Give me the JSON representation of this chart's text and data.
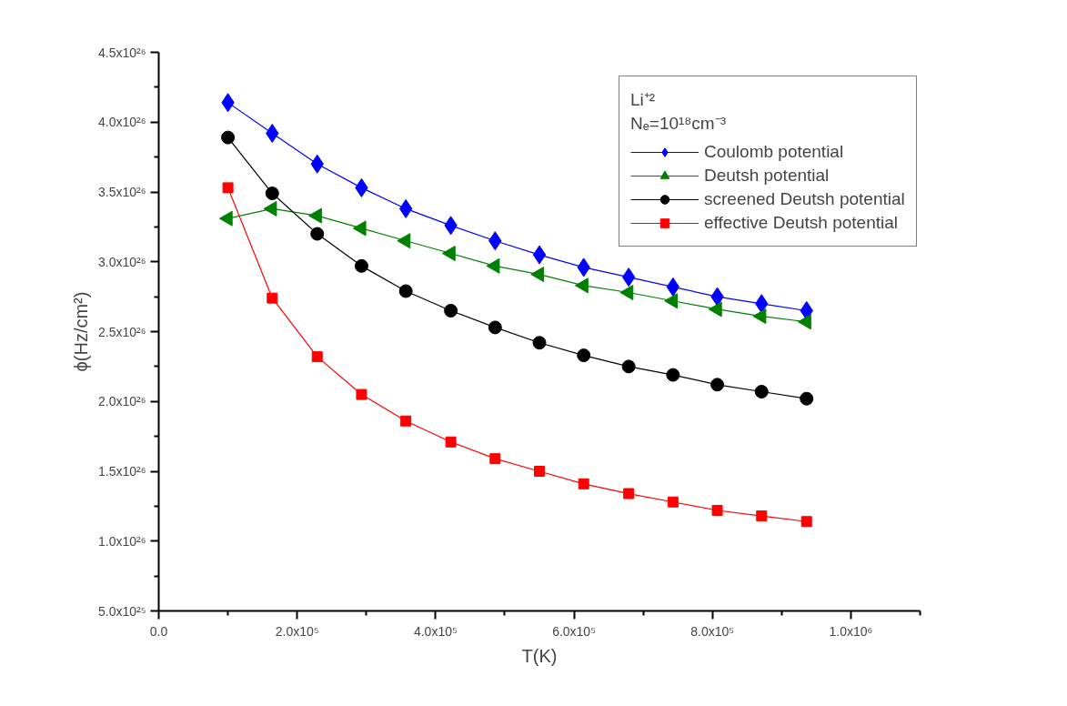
{
  "chart_data": {
    "type": "line",
    "xlabel": "T(K)",
    "ylabel": "ϕ(Hz/cm²)",
    "legend_title": "Li⁺²\nNₑ=10¹⁸cm⁻³",
    "x": [
      100000,
      164000,
      229000,
      293000,
      357000,
      422000,
      486000,
      550000,
      614000,
      679000,
      743000,
      807000,
      871000,
      936000
    ],
    "series": [
      {
        "name": "Coulomb potential",
        "color": "#0000ff",
        "marker": "diamond",
        "values": [
          4.14e+26,
          3.92e+26,
          3.7e+26,
          3.53e+26,
          3.38e+26,
          3.26e+26,
          3.15e+26,
          3.05e+26,
          2.96e+26,
          2.89e+26,
          2.82e+26,
          2.75e+26,
          2.7e+26,
          2.65e+26
        ]
      },
      {
        "name": "Deutsh potential",
        "color": "#008000",
        "marker": "triangle",
        "values": [
          3.31e+26,
          3.38e+26,
          3.33e+26,
          3.24e+26,
          3.15e+26,
          3.06e+26,
          2.97e+26,
          2.91e+26,
          2.83e+26,
          2.78e+26,
          2.72e+26,
          2.66e+26,
          2.61e+26,
          2.57e+26
        ]
      },
      {
        "name": "screened Deutsh potential",
        "color": "#000000",
        "marker": "circle",
        "values": [
          3.89e+26,
          3.49e+26,
          3.2e+26,
          2.97e+26,
          2.79e+26,
          2.65e+26,
          2.53e+26,
          2.42e+26,
          2.33e+26,
          2.25e+26,
          2.19e+26,
          2.12e+26,
          2.07e+26,
          2.02e+26
        ]
      },
      {
        "name": "effective Deutsh potential",
        "color": "#ff0000",
        "marker": "square",
        "values": [
          3.53e+26,
          2.74e+26,
          2.32e+26,
          2.05e+26,
          1.86e+26,
          1.71e+26,
          1.59e+26,
          1.5e+26,
          1.41e+26,
          1.34e+26,
          1.28e+26,
          1.22e+26,
          1.18e+26,
          1.14e+26
        ]
      }
    ],
    "xlim": [
      0,
      1100000
    ],
    "xticks": [
      {
        "value": 0,
        "label": "0.0"
      },
      {
        "value": 100000,
        "label": null
      },
      {
        "value": 200000,
        "label": "2.0x10⁵"
      },
      {
        "value": 300000,
        "label": null
      },
      {
        "value": 400000,
        "label": "4.0x10⁵"
      },
      {
        "value": 500000,
        "label": null
      },
      {
        "value": 600000,
        "label": "6.0x10⁵"
      },
      {
        "value": 700000,
        "label": null
      },
      {
        "value": 800000,
        "label": "8.0x10⁵"
      },
      {
        "value": 900000,
        "label": null
      },
      {
        "value": 1000000,
        "label": "1.0x10⁶"
      },
      {
        "value": 1100000,
        "label": null
      }
    ],
    "ylim": [
      5e+25,
      4.5e+26
    ],
    "yticks": [
      {
        "value": 5e+25,
        "label": "5.0x10²⁵"
      },
      {
        "value": 7.5e+25,
        "label": null
      },
      {
        "value": 1e+26,
        "label": "1.0x10²⁶"
      },
      {
        "value": 1.25e+26,
        "label": null
      },
      {
        "value": 1.5e+26,
        "label": "1.5x10²⁶"
      },
      {
        "value": 1.75e+26,
        "label": null
      },
      {
        "value": 2e+26,
        "label": "2.0x10²⁶"
      },
      {
        "value": 2.25e+26,
        "label": null
      },
      {
        "value": 2.5e+26,
        "label": "2.5x10²⁶"
      },
      {
        "value": 2.75e+26,
        "label": null
      },
      {
        "value": 3e+26,
        "label": "3.0x10²⁶"
      },
      {
        "value": 3.25e+26,
        "label": null
      },
      {
        "value": 3.5e+26,
        "label": "3.5x10²⁶"
      },
      {
        "value": 3.75e+26,
        "label": null
      },
      {
        "value": 4e+26,
        "label": "4.0x10²⁶"
      },
      {
        "value": 4.25e+26,
        "label": null
      },
      {
        "value": 4.5e+26,
        "label": "4.5x10²⁶"
      }
    ],
    "grid": false,
    "legend": "top right",
    "line_style": "solid"
  }
}
